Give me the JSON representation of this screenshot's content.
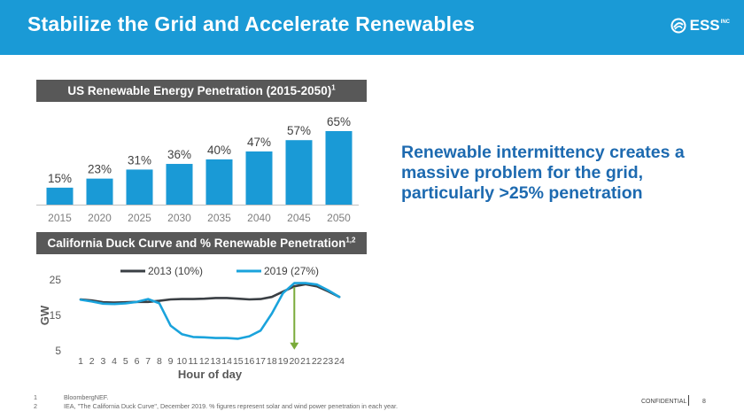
{
  "header": {
    "title": "Stabilize the Grid and Accelerate Renewables",
    "logo_text": "ESS",
    "logo_sup": "INC"
  },
  "headline": "Renewable intermittency creates a massive problem for the grid, particularly >25% penetration",
  "colors": {
    "header_bg": "#1a9ad6",
    "bar": "#1a9ad6",
    "line_2013": "#3a3f44",
    "line_2019": "#1aa3dc",
    "arrow": "#7aab3a",
    "headline": "#1d6ab0",
    "panel_bar": "#585858"
  },
  "chart_data": [
    {
      "type": "bar",
      "title": "US Renewable Energy Penetration (2015-2050)",
      "title_sup": "1",
      "categories": [
        "2015",
        "2020",
        "2025",
        "2030",
        "2035",
        "2040",
        "2045",
        "2050"
      ],
      "values": [
        15,
        23,
        31,
        36,
        40,
        47,
        57,
        65
      ],
      "value_labels": [
        "15%",
        "23%",
        "31%",
        "36%",
        "40%",
        "47%",
        "57%",
        "65%"
      ],
      "ylim": [
        0,
        65
      ],
      "grid": false
    },
    {
      "type": "line",
      "title": "California Duck Curve and % Renewable Penetration",
      "title_sup": "1,2",
      "x": [
        1,
        2,
        3,
        4,
        5,
        6,
        7,
        8,
        9,
        10,
        11,
        12,
        13,
        14,
        15,
        16,
        17,
        18,
        19,
        20,
        21,
        22,
        23,
        24
      ],
      "x_tick_labels": [
        "1",
        "2",
        "3",
        "4",
        "5",
        "6",
        "7",
        "8",
        "9",
        "10",
        "11",
        "12",
        "13",
        "14",
        "15",
        "16",
        "17",
        "18",
        "19",
        "20",
        "21",
        "22",
        "23",
        "24"
      ],
      "xlabel": "Hour of day",
      "ylabel": "GW",
      "yticks": [
        5,
        15,
        25
      ],
      "ytick_labels": [
        "5",
        "15",
        "25"
      ],
      "ylim": [
        5,
        25
      ],
      "legend_position": "top",
      "series": [
        {
          "name": "2013 (10%)",
          "values": [
            19.5,
            19.2,
            18.7,
            18.6,
            18.7,
            18.8,
            18.8,
            19.1,
            19.5,
            19.6,
            19.6,
            19.7,
            19.9,
            19.9,
            19.7,
            19.5,
            19.6,
            20.2,
            21.7,
            23.2,
            23.8,
            23.2,
            21.8,
            20.2
          ]
        },
        {
          "name": "2019 (27%)",
          "values": [
            19.4,
            18.9,
            18.3,
            18.2,
            18.4,
            18.8,
            19.6,
            18.4,
            12.1,
            9.7,
            8.9,
            8.8,
            8.6,
            8.6,
            8.4,
            9.1,
            10.7,
            15.5,
            21.3,
            24.1,
            24.1,
            23.7,
            22.1,
            20.2
          ]
        }
      ],
      "annotation": {
        "type": "arrow",
        "x": 20,
        "from": 23,
        "to": 5.3
      }
    }
  ],
  "footnotes": [
    {
      "num": "1",
      "text": "BloombergNEF."
    },
    {
      "num": "2",
      "text": "IEA, \"The California Duck Curve\", December 2019. % figures represent solar and wind power penetration in each year."
    }
  ],
  "footer": {
    "confidential": "CONFIDENTIAL",
    "page": "8"
  }
}
